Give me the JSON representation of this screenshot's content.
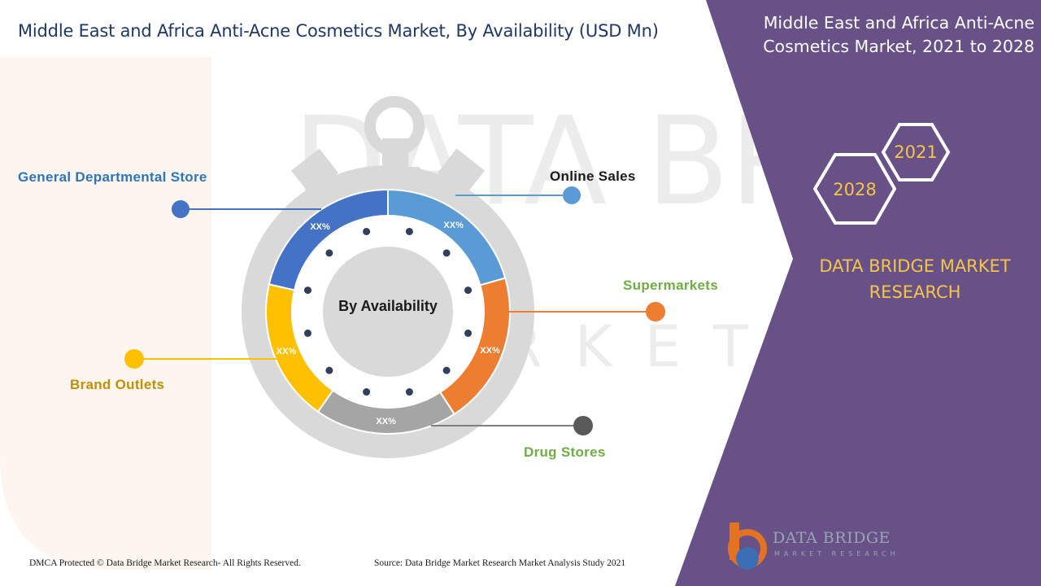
{
  "title": "Middle East and Africa Anti-Acne Cosmetics Market, By Availability (USD Mn)",
  "side_panel": {
    "title_line1": "Middle East and Africa Anti-Acne",
    "title_line2": "Cosmetics Market, 2021 to 2028",
    "hex_year_back": "2021",
    "hex_year_front": "2028",
    "brand_line1": "DATA BRIDGE MARKET",
    "brand_line2": "RESEARCH",
    "panel_color": "#675187",
    "brand_color": "#f5c54a"
  },
  "chart_data": {
    "type": "pie",
    "center_label": "By Availability",
    "segments": [
      {
        "name": "Online Sales",
        "value_label": "XX%",
        "color": "#5b9bd5"
      },
      {
        "name": "Supermarkets",
        "value_label": "XX%",
        "color": "#ed7d31"
      },
      {
        "name": "Drug Stores",
        "value_label": "XX%",
        "color": "#a5a5a5"
      },
      {
        "name": "Brand Outlets",
        "value_label": "XX%",
        "color": "#ffc000"
      },
      {
        "name": "General Departmental Store",
        "value_label": "XX%",
        "color": "#4472c4"
      }
    ],
    "label_colors": {
      "Online Sales": "#1b1b1b",
      "Supermarkets": "#70ad47",
      "Drug Stores": "#70ad47",
      "Brand Outlets": "#bf9000",
      "General Departmental Store": "#2e75b6"
    }
  },
  "watermark": {
    "text_main": "DATA BRIDGE",
    "text_sub": "MARKET RESEARCH"
  },
  "logo": {
    "name": "DATA BRIDGE",
    "tagline": "MARKET RESEARCH",
    "icon": "data-bridge-logo-icon"
  },
  "footer": {
    "copyright": "DMCA Protected © Data Bridge Market Research- All Rights Reserved.",
    "source": "Source: Data Bridge Market Research Market Analysis Study 2021"
  }
}
